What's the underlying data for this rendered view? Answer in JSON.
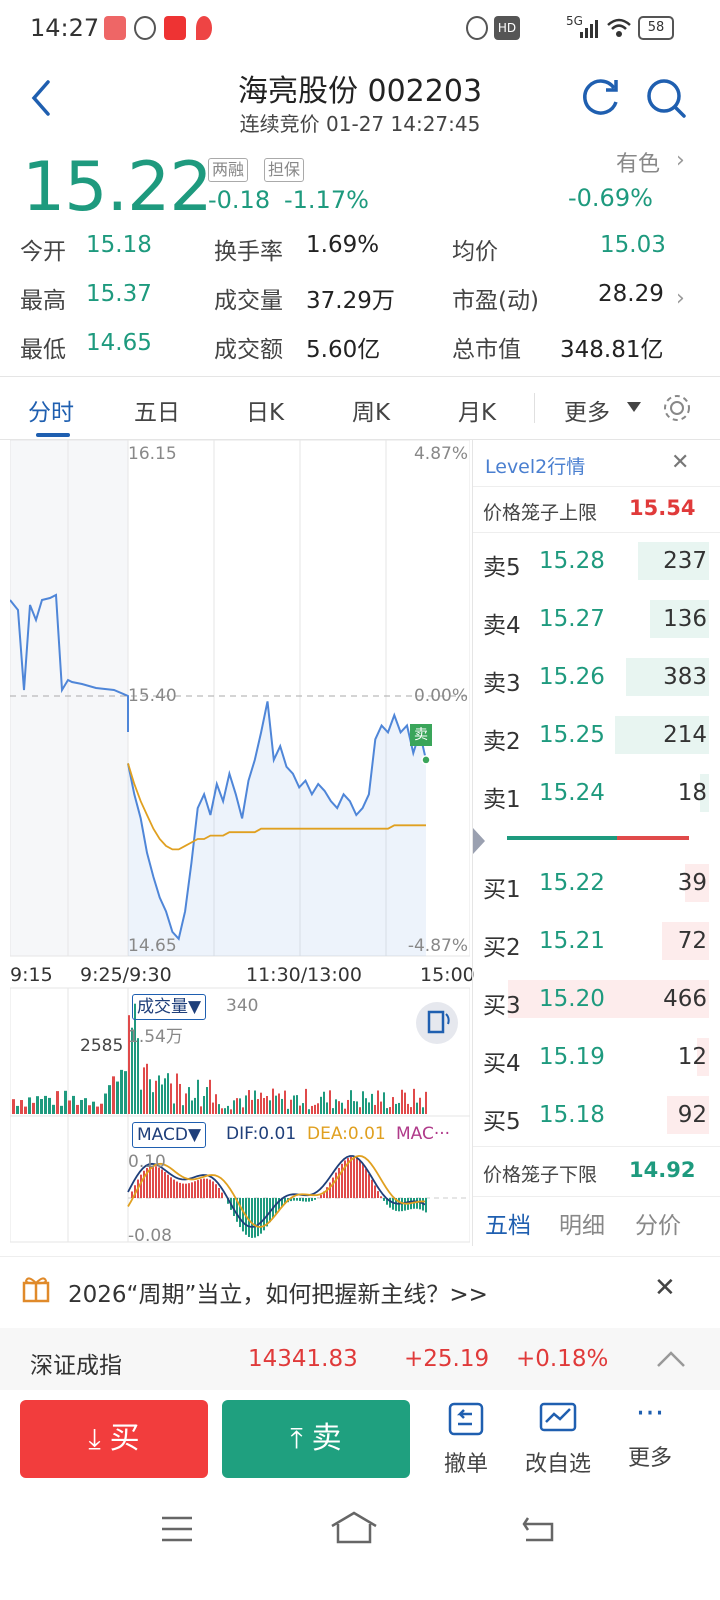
{
  "status_bar": {
    "time": "14:27",
    "network": "5G",
    "battery": "58",
    "hd": "HD"
  },
  "header": {
    "title": "海亮股份 002203",
    "subtitle": "连续竞价 01-27 14:27:45"
  },
  "quote": {
    "price": "15.22",
    "tag1": "两融",
    "tag2": "担保",
    "change": "-0.18",
    "change_pct": "-1.17%",
    "sector_name": "有色",
    "sector_change": "-0.69%",
    "open_label": "今开",
    "open": "15.18",
    "turnover_label": "换手率",
    "turnover": "1.69%",
    "avg_label": "均价",
    "avg": "15.03",
    "high_label": "最高",
    "high": "15.37",
    "volume_label": "成交量",
    "volume": "37.29万",
    "pe_label": "市盈(动)",
    "pe": "28.29",
    "low_label": "最低",
    "low": "14.65",
    "amount_label": "成交额",
    "amount": "5.60亿",
    "mcap_label": "总市值",
    "mcap": "348.81亿"
  },
  "tabs": {
    "t1": "分时",
    "t2": "五日",
    "t3": "日K",
    "t4": "周K",
    "t5": "月K",
    "more": "更多"
  },
  "chart_labels": {
    "top_price": "16.15",
    "top_pct": "4.87%",
    "mid_price": "15.40",
    "mid_pct": "0.00%",
    "bot_price": "14.65",
    "bot_pct": "-4.87%",
    "t1": "9:15",
    "t2": "9:25/9:30",
    "t3": "11:30/13:00",
    "t4": "15:00",
    "sell_marker": "卖",
    "vol_selector": "成交量▼",
    "vol_value": "340",
    "vol_max": "1.54万",
    "vol_pre": "2585",
    "macd_selector": "MACD▼",
    "dif": "DIF:0.01",
    "dea": "DEA:0.01",
    "macd": "MAC···",
    "macd_top": "0.10",
    "macd_bot": "-0.08"
  },
  "chart_data": [
    {
      "type": "line",
      "title": "",
      "x_ticks": [
        "9:15",
        "9:25/9:30",
        "11:30/13:00",
        "15:00"
      ],
      "ylim": [
        14.65,
        16.15
      ],
      "y2lim": [
        "-4.87%",
        "4.87%"
      ],
      "prev_close": 15.4,
      "series": [
        {
          "values": [
            15.21,
            15.12,
            15.05,
            14.95,
            14.88,
            14.82,
            14.78,
            14.72,
            14.7,
            14.78,
            14.92,
            15.08,
            15.12,
            15.06,
            15.15,
            15.1,
            15.18,
            15.12,
            15.05,
            15.16,
            15.22,
            15.3,
            15.39,
            15.22,
            15.26,
            15.2,
            15.18,
            15.14,
            15.16,
            15.12,
            15.15,
            15.13,
            15.1,
            15.08,
            15.12,
            15.1,
            15.06,
            15.08,
            15.12,
            15.28,
            15.32,
            15.3,
            15.35,
            15.3,
            15.32,
            15.24,
            15.3,
            15.22
          ]
        },
        {
          "values": [
            15.21,
            15.15,
            15.1,
            15.06,
            15.02,
            14.99,
            14.97,
            14.96,
            14.96,
            14.97,
            14.98,
            14.99,
            14.99,
            15.0,
            15.0,
            15.0,
            15.01,
            15.01,
            15.01,
            15.01,
            15.01,
            15.02,
            15.02,
            15.02,
            15.02,
            15.02,
            15.02,
            15.02,
            15.02,
            15.02,
            15.02,
            15.02,
            15.02,
            15.02,
            15.02,
            15.02,
            15.02,
            15.02,
            15.02,
            15.02,
            15.02,
            15.02,
            15.03,
            15.03,
            15.03,
            15.03,
            15.03,
            15.03
          ]
        }
      ]
    }
  ],
  "orderbook": {
    "title": "Level2行情",
    "upper_label": "价格笼子上限",
    "upper": "15.54",
    "lower_label": "价格笼子下限",
    "lower": "14.92",
    "asks": [
      {
        "label": "卖5",
        "price": "15.28",
        "vol": "237"
      },
      {
        "label": "卖4",
        "price": "15.27",
        "vol": "136"
      },
      {
        "label": "卖3",
        "price": "15.26",
        "vol": "383"
      },
      {
        "label": "卖2",
        "price": "15.25",
        "vol": "214"
      },
      {
        "label": "卖1",
        "price": "15.24",
        "vol": "18"
      }
    ],
    "bids": [
      {
        "label": "买1",
        "price": "15.22",
        "vol": "39"
      },
      {
        "label": "买2",
        "price": "15.21",
        "vol": "72"
      },
      {
        "label": "买3",
        "price": "15.20",
        "vol": "466"
      },
      {
        "label": "买4",
        "price": "15.19",
        "vol": "12"
      },
      {
        "label": "买5",
        "price": "15.18",
        "vol": "92"
      }
    ],
    "tab1": "五档",
    "tab2": "明细",
    "tab3": "分价"
  },
  "banner": {
    "text": "2026“周期”当立，如何把握新主线？>>"
  },
  "index": {
    "name": "深证成指",
    "value": "14341.83",
    "change": "+25.19",
    "pct": "+0.18%"
  },
  "actions": {
    "buy": "买",
    "sell": "卖",
    "cancel": "撤单",
    "watch": "改自选",
    "more": "更多"
  },
  "colors": {
    "green": "#1e9a7e",
    "red": "#e03a3a",
    "blue": "#1f5fb0",
    "line": "#4f86d8",
    "avg": "#e0a020"
  }
}
